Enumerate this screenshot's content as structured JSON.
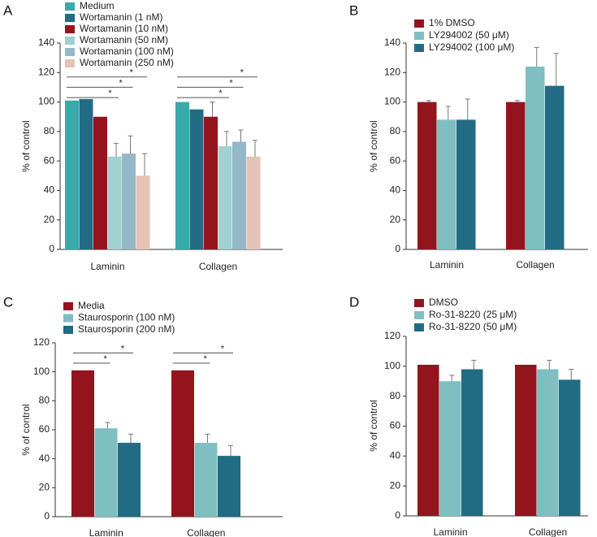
{
  "colors": {
    "teal": "#3aa9a9",
    "darkteal": "#226b84",
    "red": "#94141e",
    "lightteal": "#7fbfc1",
    "steel": "#94b8c8",
    "peach": "#e4c3b6",
    "verylight": "#9fd1d0"
  },
  "chart_data": [
    {
      "panel": "A",
      "type": "bar",
      "ylabel": "% of control",
      "ylim": [
        0,
        140
      ],
      "yticks": [
        0,
        20,
        40,
        60,
        80,
        100,
        120,
        140
      ],
      "categories": [
        "Laminin",
        "Collagen"
      ],
      "series": [
        {
          "name": "Medium",
          "color": "teal",
          "values": [
            101,
            100
          ],
          "errors": [
            0,
            0
          ]
        },
        {
          "name": "Wortamanin (1 nM)",
          "color": "darkteal",
          "values": [
            102,
            95
          ],
          "errors": [
            0,
            0
          ]
        },
        {
          "name": "Wortamanin (10 nM)",
          "color": "red",
          "values": [
            90,
            90
          ],
          "errors": [
            0,
            10
          ]
        },
        {
          "name": "Wortamanin (50 nM)",
          "color": "verylight",
          "values": [
            63,
            70
          ],
          "errors": [
            9,
            10
          ]
        },
        {
          "name": "Wortamanin (100 nM)",
          "color": "steel",
          "values": [
            65,
            73
          ],
          "errors": [
            12,
            8
          ]
        },
        {
          "name": "Wortamanin (250 nM)",
          "color": "peach",
          "values": [
            50,
            63
          ],
          "errors": [
            15,
            11
          ]
        }
      ],
      "significance": [
        {
          "group": 0,
          "from": 0,
          "to": 3,
          "y": 103,
          "label": "*"
        },
        {
          "group": 0,
          "from": 0,
          "to": 4,
          "y": 110,
          "label": "*"
        },
        {
          "group": 0,
          "from": 0,
          "to": 5,
          "y": 117,
          "label": "*"
        },
        {
          "group": 1,
          "from": 0,
          "to": 3,
          "y": 103,
          "label": "*"
        },
        {
          "group": 1,
          "from": 0,
          "to": 4,
          "y": 110,
          "label": "*"
        },
        {
          "group": 1,
          "from": 0,
          "to": 5,
          "y": 117,
          "label": "*"
        }
      ]
    },
    {
      "panel": "B",
      "type": "bar",
      "ylabel": "% of control",
      "ylim": [
        0,
        140
      ],
      "yticks": [
        0,
        20,
        40,
        60,
        80,
        100,
        120,
        140
      ],
      "categories": [
        "Laminin",
        "Collagen"
      ],
      "series": [
        {
          "name": "1% DMSO",
          "color": "red",
          "values": [
            100,
            100
          ],
          "errors": [
            1,
            1
          ]
        },
        {
          "name": "LY294002 (50 μM)",
          "color": "lightteal",
          "values": [
            88,
            124
          ],
          "errors": [
            9,
            13
          ]
        },
        {
          "name": "LY294002 (100 μM)",
          "color": "darkteal",
          "values": [
            88,
            111
          ],
          "errors": [
            14,
            22
          ]
        }
      ],
      "significance": []
    },
    {
      "panel": "C",
      "type": "bar",
      "ylabel": "% of control",
      "ylim": [
        0,
        120
      ],
      "yticks": [
        0,
        20,
        40,
        60,
        80,
        100,
        120
      ],
      "categories": [
        "Laminin",
        "Collagen"
      ],
      "series": [
        {
          "name": "Media",
          "color": "red",
          "values": [
            101,
            101
          ],
          "errors": [
            0,
            0
          ]
        },
        {
          "name": "Staurosporin (100 nM)",
          "color": "lightteal",
          "values": [
            61,
            51
          ],
          "errors": [
            4,
            6
          ]
        },
        {
          "name": "Staurosporin (200 nM)",
          "color": "darkteal",
          "values": [
            51,
            42
          ],
          "errors": [
            6,
            7
          ]
        }
      ],
      "significance": [
        {
          "group": 0,
          "from": 0,
          "to": 1,
          "y": 106,
          "label": "*"
        },
        {
          "group": 0,
          "from": 0,
          "to": 2,
          "y": 113,
          "label": "*"
        },
        {
          "group": 1,
          "from": 0,
          "to": 1,
          "y": 106,
          "label": "*"
        },
        {
          "group": 1,
          "from": 0,
          "to": 2,
          "y": 113,
          "label": "*"
        }
      ]
    },
    {
      "panel": "D",
      "type": "bar",
      "ylabel": "% of control",
      "ylim": [
        0,
        120
      ],
      "yticks": [
        0,
        20,
        40,
        60,
        80,
        100,
        120
      ],
      "categories": [
        "Laminin",
        "Collagen"
      ],
      "series": [
        {
          "name": "DMSO",
          "color": "red",
          "values": [
            101,
            101
          ],
          "errors": [
            0,
            0
          ]
        },
        {
          "name": "Ro-31-8220 (25 μM)",
          "color": "lightteal",
          "values": [
            90,
            98
          ],
          "errors": [
            4,
            6
          ]
        },
        {
          "name": "Ro-31-8220 (50 μM)",
          "color": "darkteal",
          "values": [
            98,
            91
          ],
          "errors": [
            6,
            7
          ]
        }
      ],
      "significance": []
    }
  ]
}
